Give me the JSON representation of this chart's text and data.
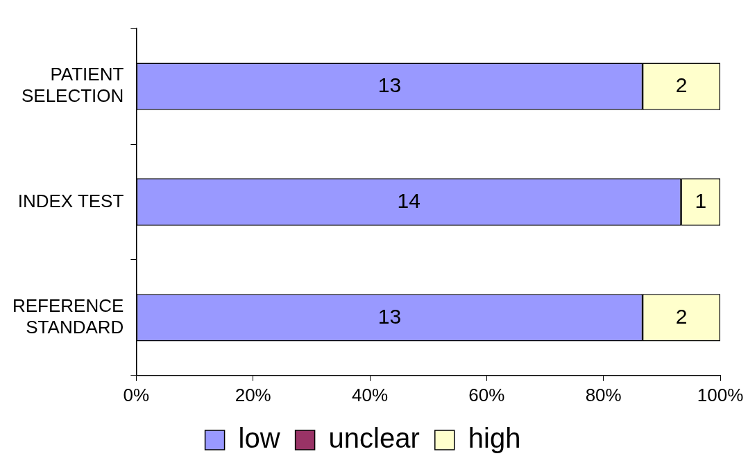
{
  "chart_data": {
    "type": "bar",
    "orientation": "horizontal",
    "stacked": true,
    "categories": [
      "PATIENT SELECTION",
      "INDEX TEST",
      "REFERENCE STANDARD"
    ],
    "series": [
      {
        "name": "low",
        "color": "#9999ff",
        "values": [
          86.7,
          93.3,
          86.7
        ]
      },
      {
        "name": "unclear",
        "color": "#993366",
        "values": [
          0,
          0,
          0
        ]
      },
      {
        "name": "high",
        "color": "#ffffcc",
        "values": [
          13.3,
          6.7,
          13.3
        ]
      }
    ],
    "xlim": [
      0,
      100
    ],
    "xticks": [
      {
        "value": 0,
        "label": "0%"
      },
      {
        "value": 20,
        "label": "20%"
      },
      {
        "value": 40,
        "label": "40%"
      },
      {
        "value": 60,
        "label": "60%"
      },
      {
        "value": 80,
        "label": "80%"
      },
      {
        "value": 100,
        "label": "100%"
      }
    ],
    "annotations": [
      "13",
      "2",
      "14",
      "1",
      "13",
      "2"
    ],
    "legend": "bottom",
    "grid": false
  }
}
